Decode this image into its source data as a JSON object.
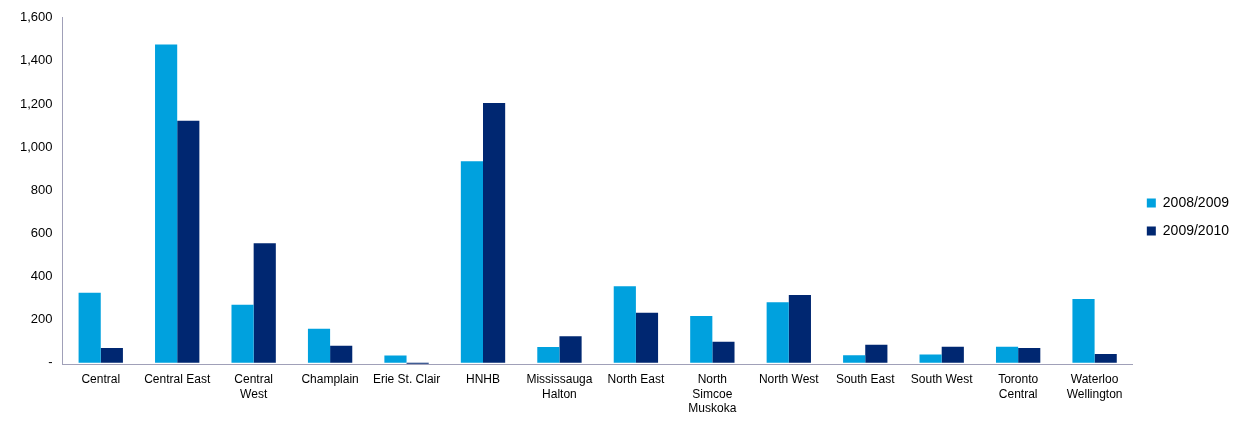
{
  "chart_data": {
    "type": "bar",
    "categories": [
      "Central",
      "Central East",
      "Central\nWest",
      "Champlain",
      "Erie St. Clair",
      "HNHB",
      "Mississauga\nHalton",
      "North East",
      "North\nSimcoe\nMuskoka",
      "North West",
      "South East",
      "South West",
      "Toronto\nCentral",
      "Waterloo\nWellington"
    ],
    "series": [
      {
        "name": "2008/2009",
        "color": "#00a1de",
        "values": [
          324,
          1476,
          269,
          157,
          33,
          934,
          73,
          354,
          216,
          280,
          34,
          38,
          74,
          295
        ]
      },
      {
        "name": "2009/2010",
        "color": "#002771",
        "values": [
          68,
          1122,
          554,
          78,
          -5,
          1205,
          122,
          231,
          97,
          314,
          83,
          74,
          68,
          40
        ]
      }
    ],
    "ylim": [
      -10,
      1600
    ],
    "yticks": [
      {
        "value": 0,
        "label": "-"
      },
      200,
      400,
      600,
      800,
      {
        "value": 1000,
        "label": "1,000"
      },
      {
        "value": 1200,
        "label": "1,200"
      },
      {
        "value": 1400,
        "label": "1,400"
      },
      {
        "value": 1600,
        "label": "1,600"
      }
    ],
    "grid": false,
    "legend": "right"
  }
}
